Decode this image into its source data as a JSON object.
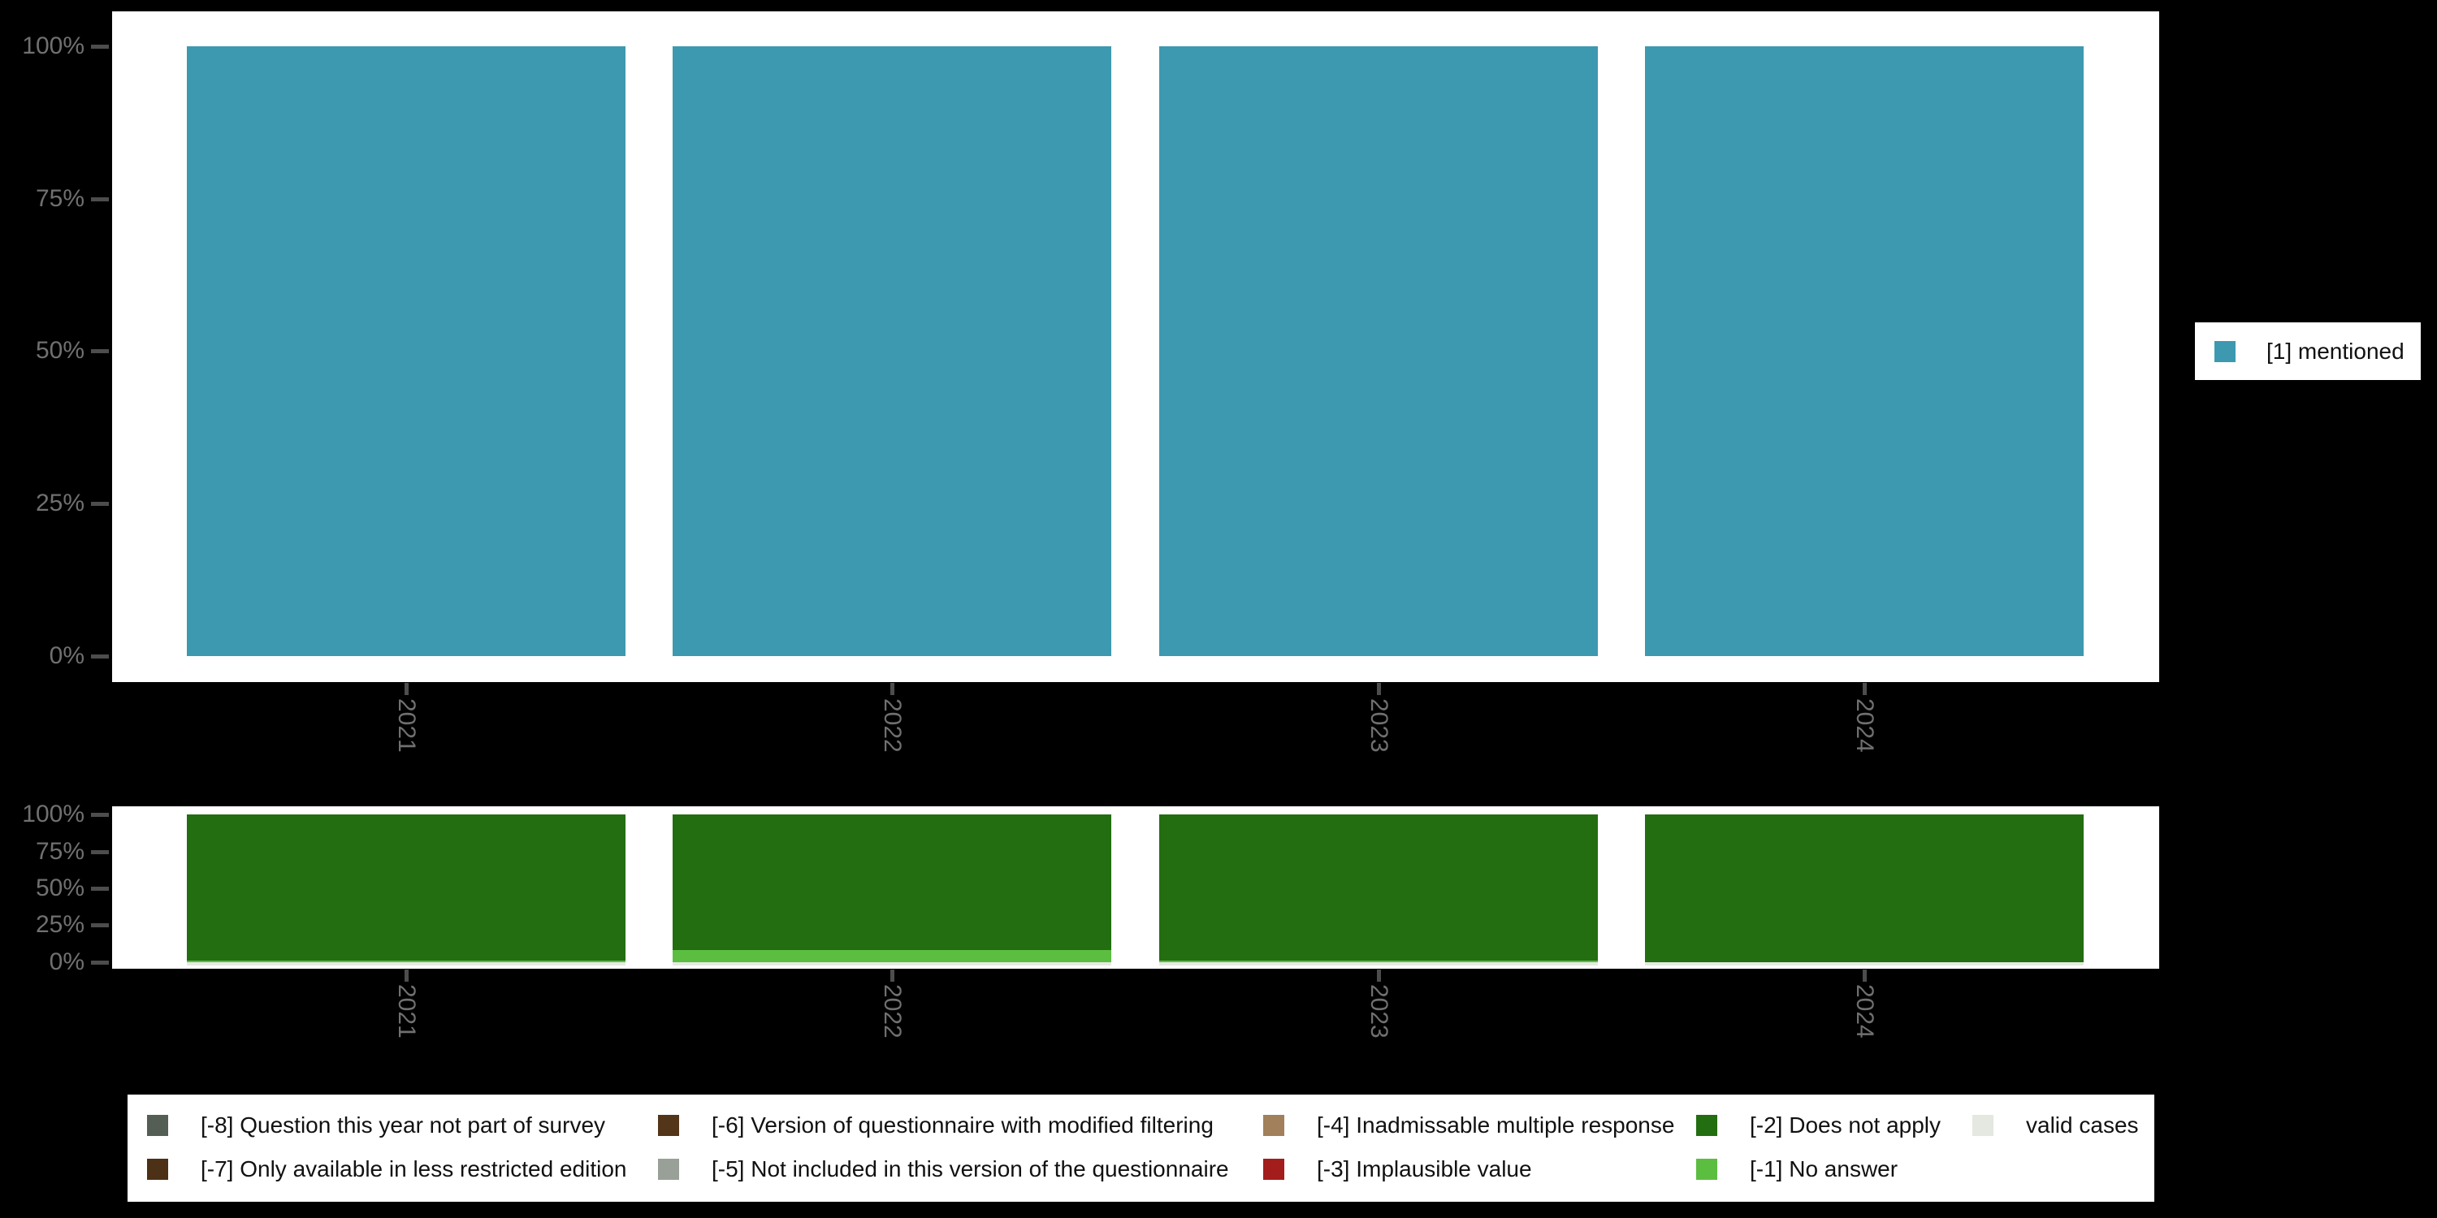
{
  "colors": {
    "background": "#000000",
    "panel": "#ffffff",
    "axis_text": "#707070",
    "tick_mark": "#4D4D4D",
    "mentioned_teal": "#3D99B0",
    "does_not_apply_green": "#226E10",
    "no_answer_light_green": "#5BBE41",
    "valid_cases_gray": "#E4E8E0"
  },
  "chart_data": [
    {
      "id": "valid-responses",
      "type": "bar",
      "stacked": true,
      "grid": false,
      "categories": [
        "2021",
        "2022",
        "2023",
        "2024"
      ],
      "series": [
        {
          "name": "[1] mentioned",
          "color": "#3D99B0",
          "values": [
            100,
            100,
            100,
            100
          ]
        }
      ],
      "xlabel": "",
      "ylabel": "",
      "ylim": [
        0,
        100
      ],
      "yticks": [
        "100%",
        "75%",
        "50%",
        "25%",
        "0%"
      ],
      "legend_position": "right"
    },
    {
      "id": "missing-values",
      "type": "bar",
      "stacked": true,
      "grid": false,
      "categories": [
        "2021",
        "2022",
        "2023",
        "2024"
      ],
      "series": [
        {
          "name": "[-2] Does not apply",
          "color": "#226E10",
          "values": [
            99,
            92,
            99,
            100
          ]
        },
        {
          "name": "[-1] No answer",
          "color": "#5BBE41",
          "values": [
            1,
            8,
            1,
            0
          ]
        }
      ],
      "xlabel": "",
      "ylabel": "",
      "ylim": [
        0,
        100
      ],
      "yticks": [
        "100%",
        "75%",
        "50%",
        "25%",
        "0%"
      ],
      "legend_position": "bottom"
    }
  ],
  "right_legend": {
    "items": [
      {
        "label": "[1] mentioned",
        "color": "#3D99B0"
      }
    ]
  },
  "bottom_legend": {
    "rows": [
      [
        {
          "label": "[-8] Question this year not part of survey",
          "color": "#545E55"
        },
        {
          "label": "[-6] Version of questionnaire with modified filtering",
          "color": "#53351A"
        },
        {
          "label": "[-4] Inadmissable multiple response",
          "color": "#A2805B"
        },
        {
          "label": "[-2] Does not apply",
          "color": "#226E10"
        },
        {
          "label": "valid cases",
          "color": "#E4E8E0"
        }
      ],
      [
        {
          "label": "[-7] Only available in less restricted edition",
          "color": "#4C3117"
        },
        {
          "label": "[-5] Not included in this version of the questionnaire",
          "color": "#99A097"
        },
        {
          "label": "[-3] Implausible value",
          "color": "#A31D1D"
        },
        {
          "label": "[-1] No answer",
          "color": "#5BBE41"
        }
      ]
    ]
  }
}
